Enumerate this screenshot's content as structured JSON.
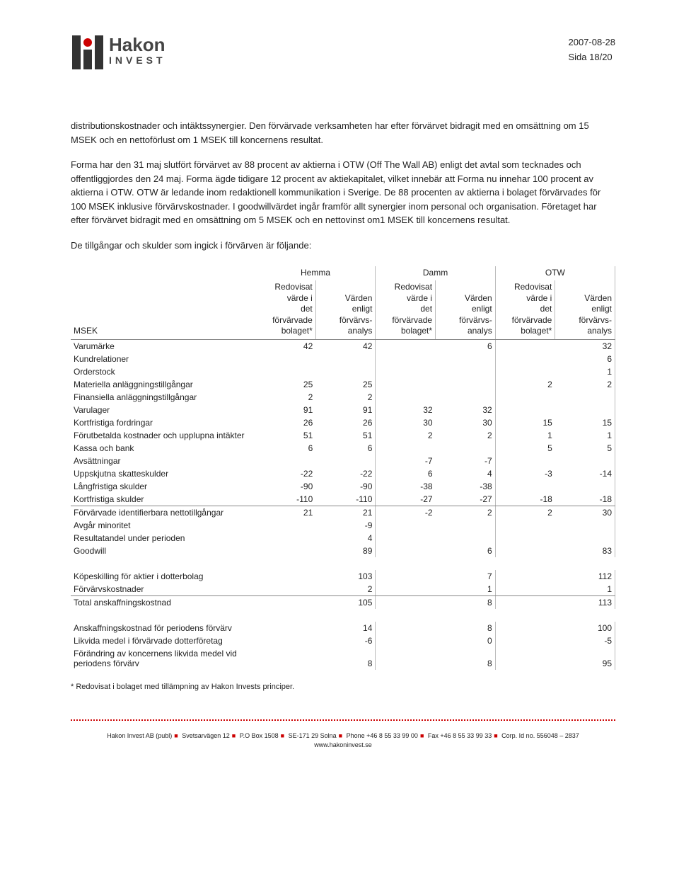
{
  "header": {
    "logo_title": "Hakon",
    "logo_sub": "INVEST",
    "date": "2007-08-28",
    "page": "Sida 18/20"
  },
  "paras": {
    "p1": "distributionskostnader och intäktssynergier. Den förvärvade verksamheten har efter förvärvet bidragit med en omsättning om 15 MSEK och en nettoförlust om 1 MSEK till koncernens resultat.",
    "p2": "Forma har den 31 maj slutfört förvärvet av 88 procent av aktierna i OTW (Off The Wall AB) enligt det avtal som tecknades och offentliggjordes den 24 maj. Forma ägde tidigare 12 procent av aktiekapitalet, vilket innebär att Forma nu innehar 100 procent av aktierna i OTW. OTW är ledande inom redaktionell kommunikation i Sverige. De 88 procenten av aktierna i bolaget förvärvades för 100 MSEK inklusive förvärvskostnader. I goodwillvärdet ingår framför allt synergier inom personal och organisation. Företaget har efter förvärvet bidragit med en omsättning om 5 MSEK och en nettovinst om1 MSEK till koncernens resultat.",
    "p3": "De tillgångar och skulder som ingick i förvärven är följande:"
  },
  "table": {
    "groups": [
      "Hemma",
      "Damm",
      "OTW"
    ],
    "colhead_a": "Redovisat\nvärde i\ndet\nförvärvade\nbolaget*",
    "colhead_b": "Värden\nenligt\nförvärvs-\nanalys",
    "rowlabel": "MSEK",
    "rows": [
      {
        "l": "Varumärke",
        "v": [
          "42",
          "42",
          "",
          "6",
          "",
          "32"
        ]
      },
      {
        "l": "Kundrelationer",
        "v": [
          "",
          "",
          "",
          "",
          "",
          "6"
        ]
      },
      {
        "l": "Orderstock",
        "v": [
          "",
          "",
          "",
          "",
          "",
          "1"
        ]
      },
      {
        "l": "Materiella anläggningstillgångar",
        "v": [
          "25",
          "25",
          "",
          "",
          "2",
          "2"
        ]
      },
      {
        "l": "Finansiella anläggningstillgångar",
        "v": [
          "2",
          "2",
          "",
          "",
          "",
          ""
        ]
      },
      {
        "l": "Varulager",
        "v": [
          "91",
          "91",
          "32",
          "32",
          "",
          ""
        ]
      },
      {
        "l": "Kortfristiga fordringar",
        "v": [
          "26",
          "26",
          "30",
          "30",
          "15",
          "15"
        ]
      },
      {
        "l": "Förutbetalda kostnader och upplupna intäkter",
        "v": [
          "51",
          "51",
          "2",
          "2",
          "1",
          "1"
        ]
      },
      {
        "l": "Kassa och bank",
        "v": [
          "6",
          "6",
          "",
          "",
          "5",
          "5"
        ]
      },
      {
        "l": "Avsättningar",
        "v": [
          "",
          "",
          "-7",
          "-7",
          "",
          ""
        ]
      },
      {
        "l": "Uppskjutna skatteskulder",
        "v": [
          "-22",
          "-22",
          "6",
          "4",
          "-3",
          "-14"
        ]
      },
      {
        "l": "Långfristiga skulder",
        "v": [
          "-90",
          "-90",
          "-38",
          "-38",
          "",
          ""
        ]
      },
      {
        "l": "Kortfristiga skulder",
        "v": [
          "-110",
          "-110",
          "-27",
          "-27",
          "-18",
          "-18"
        ],
        "cls": "lineabove"
      }
    ],
    "sum1": {
      "l": "Förvärvade identifierbara nettotillgångar",
      "v": [
        "21",
        "21",
        "-2",
        "2",
        "2",
        "30"
      ]
    },
    "extra": [
      {
        "l": "Avgår minoritet",
        "v": [
          "",
          "-9",
          "",
          "",
          "",
          ""
        ]
      },
      {
        "l": "Resultatandel under perioden",
        "v": [
          "",
          "4",
          "",
          "",
          "",
          ""
        ]
      },
      {
        "l": "Goodwill",
        "v": [
          "",
          "89",
          "",
          "6",
          "",
          "83"
        ]
      }
    ],
    "block2": [
      {
        "l": "Köpeskilling för aktier i dotterbolag",
        "v": [
          "",
          "103",
          "",
          "7",
          "",
          "112"
        ]
      },
      {
        "l": "Förvärvskostnader",
        "v": [
          "",
          "2",
          "",
          "1",
          "",
          "1"
        ]
      }
    ],
    "total2": {
      "l": "Total anskaffningskostnad",
      "v": [
        "",
        "105",
        "",
        "8",
        "",
        "113"
      ]
    },
    "block3": [
      {
        "l": "Anskaffningskostnad för periodens förvärv",
        "v": [
          "",
          "14",
          "",
          "8",
          "",
          "100"
        ]
      },
      {
        "l": "Likvida medel i förvärvade dotterföretag",
        "v": [
          "",
          "-6",
          "",
          "0",
          "",
          "-5"
        ]
      }
    ],
    "total3": {
      "l": "Förändring av koncernens likvida medel vid periodens förvärv",
      "v": [
        "",
        "8",
        "",
        "8",
        "",
        "95"
      ]
    },
    "note": "* Redovisat i bolaget med tillämpning av Hakon Invests principer."
  },
  "footer": {
    "line1a": "Hakon Invest AB (publ)",
    "line1b": "Svetsarvägen 12",
    "line1c": "P.O Box 1508",
    "line1d": "SE-171 29 Solna",
    "line1e": "Phone +46 8 55 33 99 00",
    "line1f": "Fax +46 8 55 33 99 33",
    "line1g": "Corp. Id no. 556048 – 2837",
    "line2": "www.hakoninvest.se"
  }
}
